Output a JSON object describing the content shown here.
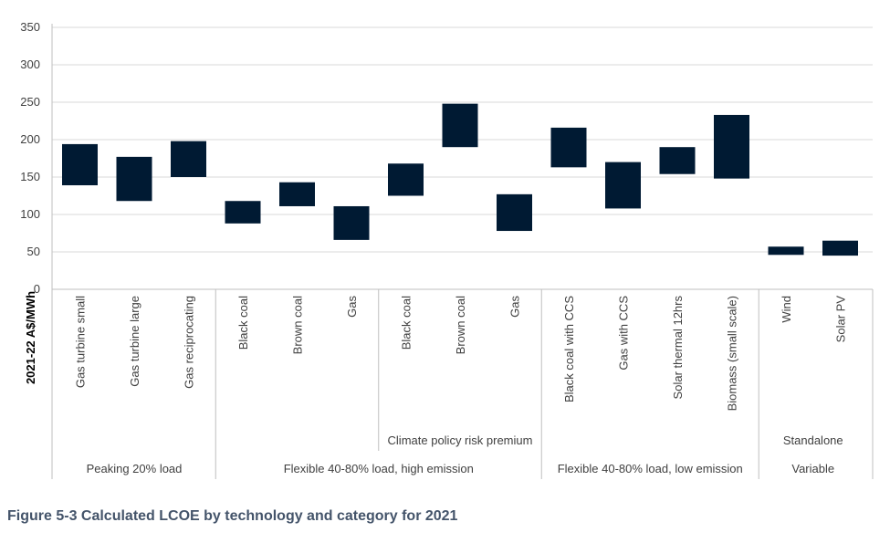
{
  "caption": "Figure 5-3 Calculated LCOE by technology and category for 2021",
  "colors": {
    "bar": "#001a33",
    "grid": "#d9d9d9",
    "axis": "#bfbfbf",
    "text": "#404040",
    "caption": "#44546a"
  },
  "chart_data": {
    "type": "bar",
    "subtype": "floating-range",
    "ylabel": "2021-22 A$/MWh",
    "ylim": [
      0,
      350
    ],
    "yticks": [
      0,
      50,
      100,
      150,
      200,
      250,
      300,
      350
    ],
    "grid": true,
    "categories": [
      "Gas turbine small",
      "Gas turbine large",
      "Gas reciprocating",
      "Black coal",
      "Brown coal",
      "Gas",
      "Black coal",
      "Brown coal",
      "Gas",
      "Black coal with CCS",
      "Gas with CCS",
      "Solar thermal 12hrs",
      "Biomass (small scale)",
      "Wind",
      "Solar PV"
    ],
    "ranges": [
      [
        139,
        194
      ],
      [
        118,
        177
      ],
      [
        150,
        198
      ],
      [
        88,
        118
      ],
      [
        111,
        143
      ],
      [
        66,
        111
      ],
      [
        125,
        168
      ],
      [
        190,
        248
      ],
      [
        78,
        127
      ],
      [
        163,
        216
      ],
      [
        108,
        170
      ],
      [
        154,
        190
      ],
      [
        148,
        233
      ],
      [
        46,
        57
      ],
      [
        45,
        65
      ]
    ],
    "subgroups": [
      {
        "label": "",
        "start": 0,
        "end": 2
      },
      {
        "label": "",
        "start": 3,
        "end": 5
      },
      {
        "label": "Climate policy risk premium",
        "start": 6,
        "end": 8
      },
      {
        "label": "",
        "start": 9,
        "end": 12
      },
      {
        "label": "Standalone",
        "start": 13,
        "end": 14
      }
    ],
    "groups": [
      {
        "label": "Peaking 20% load",
        "start": 0,
        "end": 2
      },
      {
        "label": "Flexible 40-80% load, high emission",
        "start": 3,
        "end": 8
      },
      {
        "label": "Flexible 40-80% load, low emission",
        "start": 9,
        "end": 12
      },
      {
        "label": "Variable",
        "start": 13,
        "end": 14
      }
    ]
  }
}
